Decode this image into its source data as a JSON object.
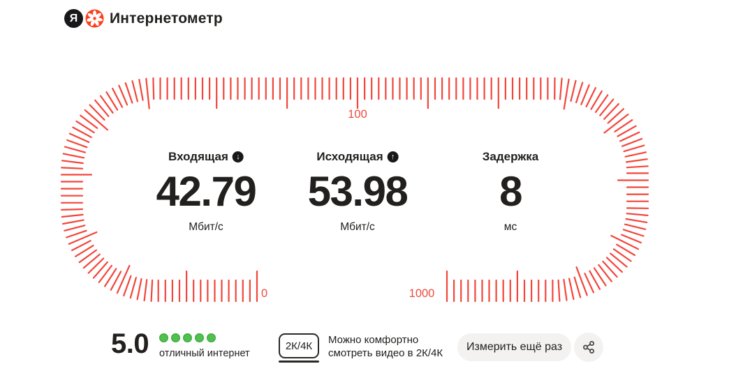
{
  "header": {
    "logo_letter": "Я",
    "title": "Интернетометр"
  },
  "gauge": {
    "scale": {
      "start": "0",
      "mid": "100",
      "end": "1000"
    },
    "metrics": [
      {
        "label": "Входящая",
        "icon": "download-arrow",
        "icon_glyph": "↓",
        "value": "42.79",
        "unit": "Мбит/с"
      },
      {
        "label": "Исходящая",
        "icon": "upload-arrow",
        "icon_glyph": "↑",
        "value": "53.98",
        "unit": "Мбит/с"
      },
      {
        "label": "Задержка",
        "icon": null,
        "icon_glyph": "",
        "value": "8",
        "unit": "мс"
      }
    ]
  },
  "footer": {
    "rating": {
      "score": "5.0",
      "dots": 5,
      "caption": "отличный интернет"
    },
    "quality": {
      "badge": "2К/4К",
      "text_lines": [
        "Можно комфортно",
        "смотреть видео в 2К/4К"
      ]
    },
    "measure_button": "Измерить ещё раз",
    "share_icon": "share"
  },
  "colors": {
    "tick_red": "#f3453a",
    "scale_label_red": "#ef4b3e",
    "dot_green": "#50c150",
    "logo_red": "#fc3f1d",
    "text_black": "#21201e"
  }
}
